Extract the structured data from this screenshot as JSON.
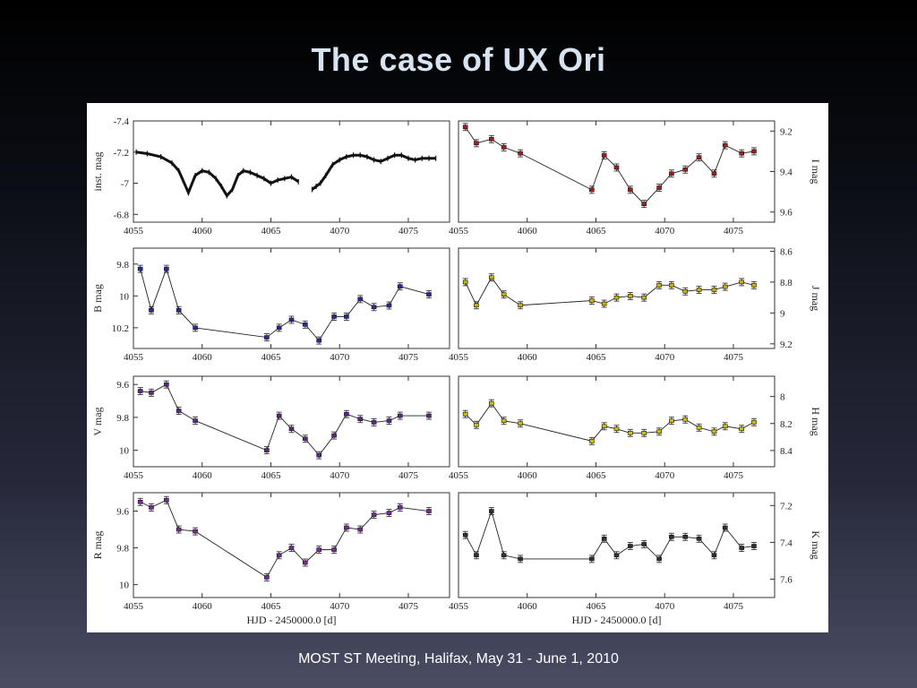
{
  "slide": {
    "title": "The case of UX Ori",
    "footer": "MOST ST Meeting, Halifax, May 31 - June 1, 2010"
  },
  "colors": {
    "background_top": "#000000",
    "background_bottom": "#4a4d63",
    "title": "#d8e3f2",
    "B": "#2a2a9a",
    "V": "#5a2a8a",
    "R": "#7a2a9a",
    "I": "#a02020",
    "J": "#c8b400",
    "H": "#d0c000",
    "K": "#303030"
  },
  "chart_data": [
    {
      "type": "scatter",
      "band": "inst",
      "ylabel": "inst. mag",
      "ylabel_side": "left",
      "xlim": [
        4055,
        4078
      ],
      "ylim": [
        -7.4,
        -6.75
      ],
      "y_inverted": true,
      "yticks": [
        -7.4,
        -7.2,
        -7,
        -6.8
      ],
      "ytick_labels": [
        "-7.4",
        "-7.2",
        "-7",
        "-6.8"
      ],
      "xticks": [
        4055,
        4060,
        4065,
        4070,
        4075
      ],
      "xtick_labels": [
        "4055",
        "4060",
        "4065",
        "4070",
        "4075"
      ],
      "series": [
        {
          "x": [
            4055.2,
            4056,
            4057,
            4057.8,
            4058.3,
            4058.6,
            4059,
            4059.5,
            4060,
            4060.5,
            4061,
            4061.4,
            4061.8,
            4062.2,
            4062.6,
            4063,
            4063.5,
            4064,
            4064.5,
            4065,
            4065.5,
            4066,
            4066.5,
            4067
          ],
          "y": [
            -7.2,
            -7.19,
            -7.17,
            -7.13,
            -7.08,
            -7.02,
            -6.94,
            -7.05,
            -7.08,
            -7.07,
            -7.03,
            -6.98,
            -6.92,
            -6.96,
            -7.05,
            -7.08,
            -7.07,
            -7.05,
            -7.03,
            -7.0,
            -7.02,
            -7.03,
            -7.04,
            -7.01
          ]
        },
        {
          "x": [
            4068,
            4068.3,
            4068.6,
            4069,
            4069.5,
            4070,
            4070.5,
            4071,
            4071.5,
            4072,
            4072.5,
            4073,
            4073.5,
            4074,
            4074.5,
            4075,
            4075.5,
            4076,
            4076.5,
            4077
          ],
          "y": [
            -6.96,
            -6.98,
            -7.0,
            -7.05,
            -7.12,
            -7.15,
            -7.17,
            -7.18,
            -7.18,
            -7.17,
            -7.15,
            -7.14,
            -7.16,
            -7.18,
            -7.18,
            -7.16,
            -7.15,
            -7.16,
            -7.16,
            -7.16
          ]
        }
      ]
    },
    {
      "type": "line",
      "band": "I",
      "ylabel": "I mag",
      "ylabel_side": "right",
      "xlim": [
        4055,
        4078
      ],
      "ylim": [
        9.15,
        9.65
      ],
      "y_inverted": true,
      "yticks": [
        9.2,
        9.4,
        9.6
      ],
      "ytick_labels": [
        "9.2",
        "9.4",
        "9.6"
      ],
      "xticks": [
        4055,
        4060,
        4065,
        4070,
        4075
      ],
      "xtick_labels": [
        "4055",
        "4060",
        "4065",
        "4070",
        "4075"
      ],
      "series": [
        {
          "x": [
            4055.5,
            4056.3,
            4057.4,
            4058.3,
            4059.5,
            4064.7,
            4065.6,
            4066.5,
            4067.5,
            4068.5,
            4069.6,
            4070.5,
            4071.5,
            4072.5,
            4073.6,
            4074.4,
            4075.6,
            4076.5
          ],
          "y": [
            9.18,
            9.26,
            9.24,
            9.28,
            9.31,
            9.49,
            9.32,
            9.38,
            9.49,
            9.56,
            9.48,
            9.41,
            9.39,
            9.33,
            9.41,
            9.27,
            9.31,
            9.3
          ]
        }
      ]
    },
    {
      "type": "line",
      "band": "B",
      "ylabel": "B mag",
      "ylabel_side": "left",
      "xlim": [
        4055,
        4078
      ],
      "ylim": [
        9.7,
        10.33
      ],
      "y_inverted": true,
      "yticks": [
        9.8,
        10,
        10.2
      ],
      "ytick_labels": [
        "9.8",
        "10",
        "10.2"
      ],
      "xticks": [
        4055,
        4060,
        4065,
        4070,
        4075
      ],
      "xtick_labels": [
        "4055",
        "4060",
        "4065",
        "4070",
        "4075"
      ],
      "series": [
        {
          "x": [
            4055.5,
            4056.3,
            4057.4,
            4058.3,
            4059.5,
            4064.7,
            4065.6,
            4066.5,
            4067.5,
            4068.5,
            4069.6,
            4070.5,
            4071.5,
            4072.5,
            4073.6,
            4074.4,
            4076.5
          ],
          "y": [
            9.83,
            10.09,
            9.83,
            10.09,
            10.2,
            10.26,
            10.2,
            10.15,
            10.18,
            10.28,
            10.13,
            10.13,
            10.02,
            10.07,
            10.06,
            9.94,
            9.99
          ]
        }
      ]
    },
    {
      "type": "line",
      "band": "J",
      "ylabel": "J mag",
      "ylabel_side": "right",
      "xlim": [
        4055,
        4078
      ],
      "ylim": [
        8.58,
        9.23
      ],
      "y_inverted": true,
      "yticks": [
        8.6,
        8.8,
        9,
        9.2
      ],
      "ytick_labels": [
        "8.6",
        "8.8",
        "9",
        "9.2"
      ],
      "xticks": [
        4055,
        4060,
        4065,
        4070,
        4075
      ],
      "xtick_labels": [
        "4055",
        "4060",
        "4065",
        "4070",
        "4075"
      ],
      "series": [
        {
          "x": [
            4055.5,
            4056.3,
            4057.4,
            4058.3,
            4059.5,
            4064.7,
            4065.6,
            4066.5,
            4067.5,
            4068.5,
            4069.6,
            4070.5,
            4071.5,
            4072.5,
            4073.6,
            4074.4,
            4075.6,
            4076.5
          ],
          "y": [
            8.8,
            8.95,
            8.77,
            8.88,
            8.95,
            8.92,
            8.94,
            8.9,
            8.89,
            8.9,
            8.82,
            8.82,
            8.86,
            8.85,
            8.85,
            8.83,
            8.8,
            8.82
          ]
        }
      ]
    },
    {
      "type": "line",
      "band": "V",
      "ylabel": "V mag",
      "ylabel_side": "left",
      "xlim": [
        4055,
        4078
      ],
      "ylim": [
        9.55,
        10.1
      ],
      "y_inverted": true,
      "yticks": [
        9.6,
        9.8,
        10
      ],
      "ytick_labels": [
        "9.6",
        "9.8",
        "10"
      ],
      "xticks": [
        4055,
        4060,
        4065,
        4070,
        4075
      ],
      "xtick_labels": [
        "4055",
        "4060",
        "4065",
        "4070",
        "4075"
      ],
      "series": [
        {
          "x": [
            4055.5,
            4056.3,
            4057.4,
            4058.3,
            4059.5,
            4064.7,
            4065.6,
            4066.5,
            4067.5,
            4068.5,
            4069.6,
            4070.5,
            4071.5,
            4072.5,
            4073.6,
            4074.4,
            4076.5
          ],
          "y": [
            9.64,
            9.65,
            9.6,
            9.76,
            9.82,
            10.0,
            9.79,
            9.87,
            9.93,
            10.03,
            9.91,
            9.78,
            9.81,
            9.83,
            9.82,
            9.79,
            9.79
          ]
        }
      ]
    },
    {
      "type": "line",
      "band": "H",
      "ylabel": "H mag",
      "ylabel_side": "right",
      "xlim": [
        4055,
        4078
      ],
      "ylim": [
        7.85,
        8.52
      ],
      "y_inverted": true,
      "yticks": [
        8,
        8.2,
        8.4
      ],
      "ytick_labels": [
        "8",
        "8.2",
        "8.4"
      ],
      "xticks": [
        4055,
        4060,
        4065,
        4070,
        4075
      ],
      "xtick_labels": [
        "4055",
        "4060",
        "4065",
        "4070",
        "4075"
      ],
      "series": [
        {
          "x": [
            4055.5,
            4056.3,
            4057.4,
            4058.3,
            4059.5,
            4064.7,
            4065.6,
            4066.5,
            4067.5,
            4068.5,
            4069.6,
            4070.5,
            4071.5,
            4072.5,
            4073.6,
            4074.4,
            4075.6,
            4076.5
          ],
          "y": [
            8.13,
            8.21,
            8.05,
            8.18,
            8.2,
            8.33,
            8.22,
            8.24,
            8.27,
            8.27,
            8.26,
            8.18,
            8.17,
            8.23,
            8.26,
            8.22,
            8.24,
            8.19
          ]
        }
      ]
    },
    {
      "type": "line",
      "band": "R",
      "ylabel": "R mag",
      "ylabel_side": "left",
      "xlim": [
        4055,
        4078
      ],
      "ylim": [
        9.5,
        10.07
      ],
      "y_inverted": true,
      "yticks": [
        9.6,
        9.8,
        10
      ],
      "ytick_labels": [
        "9.6",
        "9.8",
        "10"
      ],
      "xticks": [
        4055,
        4060,
        4065,
        4070,
        4075
      ],
      "xtick_labels": [
        "4055",
        "4060",
        "4065",
        "4070",
        "4075"
      ],
      "xlabel": "HJD - 2450000.0 [d]",
      "series": [
        {
          "x": [
            4055.5,
            4056.3,
            4057.4,
            4058.3,
            4059.5,
            4064.7,
            4065.6,
            4066.5,
            4067.5,
            4068.5,
            4069.6,
            4070.5,
            4071.5,
            4072.5,
            4073.6,
            4074.4,
            4076.5
          ],
          "y": [
            9.55,
            9.58,
            9.54,
            9.7,
            9.71,
            9.96,
            9.84,
            9.8,
            9.88,
            9.81,
            9.81,
            9.69,
            9.7,
            9.62,
            9.61,
            9.58,
            9.6
          ]
        }
      ]
    },
    {
      "type": "line",
      "band": "K",
      "ylabel": "K mag",
      "ylabel_side": "right",
      "xlim": [
        4055,
        4078
      ],
      "ylim": [
        7.13,
        7.7
      ],
      "y_inverted": true,
      "yticks": [
        7.2,
        7.4,
        7.6
      ],
      "ytick_labels": [
        "7.2",
        "7.4",
        "7.6"
      ],
      "xticks": [
        4055,
        4060,
        4065,
        4070,
        4075
      ],
      "xtick_labels": [
        "4055",
        "4060",
        "4065",
        "4070",
        "4075"
      ],
      "xlabel": "HJD - 2450000.0 [d]",
      "series": [
        {
          "x": [
            4055.5,
            4056.3,
            4057.4,
            4058.3,
            4059.5,
            4064.7,
            4065.6,
            4066.5,
            4067.5,
            4068.5,
            4069.6,
            4070.5,
            4071.5,
            4072.5,
            4073.6,
            4074.4,
            4075.6,
            4076.5
          ],
          "y": [
            7.36,
            7.47,
            7.23,
            7.47,
            7.49,
            7.49,
            7.38,
            7.47,
            7.42,
            7.41,
            7.49,
            7.37,
            7.37,
            7.38,
            7.47,
            7.32,
            7.43,
            7.42
          ]
        }
      ]
    }
  ]
}
